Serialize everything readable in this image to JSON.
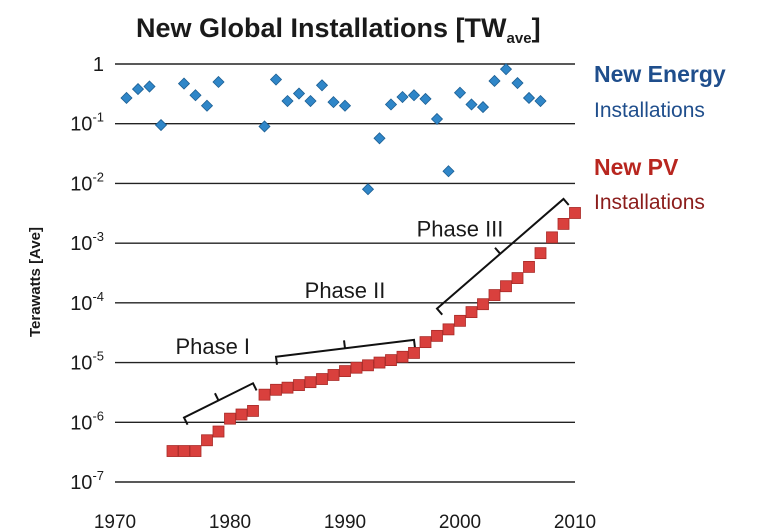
{
  "chart_data": {
    "type": "scatter",
    "title": "New Global Installations [TW",
    "title_subscript": "ave",
    "title_suffix": "]",
    "ylabel": "Terawatts [Ave]",
    "xlabel": "",
    "y_scale": "log",
    "ylim": [
      1e-07,
      1
    ],
    "xlim": [
      1970,
      2010
    ],
    "x_ticks": [
      "1970",
      "1980",
      "1990",
      "2000",
      "2010"
    ],
    "y_ticks": [
      {
        "value": 1,
        "base": "1",
        "exp": ""
      },
      {
        "value": 0.1,
        "base": "10",
        "exp": "-1"
      },
      {
        "value": 0.01,
        "base": "10",
        "exp": "-2"
      },
      {
        "value": 0.001,
        "base": "10",
        "exp": "-3"
      },
      {
        "value": 0.0001,
        "base": "10",
        "exp": "-4"
      },
      {
        "value": 1e-05,
        "base": "10",
        "exp": "-5"
      },
      {
        "value": 1e-06,
        "base": "10",
        "exp": "-6"
      },
      {
        "value": 1e-07,
        "base": "10",
        "exp": "-7"
      }
    ],
    "grid": "horizontal",
    "series": [
      {
        "name": "New Energy Installations",
        "legend_main": "New Energy",
        "legend_sub": "Installations",
        "marker": "diamond",
        "color": "#2f86c8",
        "text_color": "#1f4e8c",
        "points": [
          [
            1971,
            0.27
          ],
          [
            1972,
            0.38
          ],
          [
            1973,
            0.42
          ],
          [
            1974,
            0.095
          ],
          [
            1976,
            0.47
          ],
          [
            1977,
            0.3
          ],
          [
            1978,
            0.2
          ],
          [
            1979,
            0.5
          ],
          [
            1983,
            0.09
          ],
          [
            1984,
            0.55
          ],
          [
            1985,
            0.24
          ],
          [
            1986,
            0.32
          ],
          [
            1987,
            0.24
          ],
          [
            1988,
            0.44
          ],
          [
            1989,
            0.23
          ],
          [
            1990,
            0.2
          ],
          [
            1992,
            0.008
          ],
          [
            1993,
            0.057
          ],
          [
            1994,
            0.21
          ],
          [
            1995,
            0.28
          ],
          [
            1996,
            0.3
          ],
          [
            1997,
            0.26
          ],
          [
            1998,
            0.12
          ],
          [
            1999,
            0.016
          ],
          [
            2000,
            0.33
          ],
          [
            2001,
            0.21
          ],
          [
            2002,
            0.19
          ],
          [
            2003,
            0.52
          ],
          [
            2004,
            0.82
          ],
          [
            2005,
            0.48
          ],
          [
            2006,
            0.27
          ],
          [
            2007,
            0.24
          ]
        ]
      },
      {
        "name": "New PV Installations",
        "legend_main": "New PV",
        "legend_sub": "Installations",
        "marker": "square",
        "color": "#d9403d",
        "text_color": "#8b1d1b",
        "points": [
          [
            1975,
            3.3e-07
          ],
          [
            1976,
            3.3e-07
          ],
          [
            1977,
            3.3e-07
          ],
          [
            1978,
            5e-07
          ],
          [
            1979,
            7e-07
          ],
          [
            1980,
            1.15e-06
          ],
          [
            1981,
            1.35e-06
          ],
          [
            1982,
            1.55e-06
          ],
          [
            1983,
            2.9e-06
          ],
          [
            1984,
            3.5e-06
          ],
          [
            1985,
            3.8e-06
          ],
          [
            1986,
            4.2e-06
          ],
          [
            1987,
            4.7e-06
          ],
          [
            1988,
            5.3e-06
          ],
          [
            1989,
            6.2e-06
          ],
          [
            1990,
            7.2e-06
          ],
          [
            1991,
            8.2e-06
          ],
          [
            1992,
            9e-06
          ],
          [
            1993,
            1e-05
          ],
          [
            1994,
            1.1e-05
          ],
          [
            1995,
            1.25e-05
          ],
          [
            1996,
            1.45e-05
          ],
          [
            1997,
            2.2e-05
          ],
          [
            1998,
            2.8e-05
          ],
          [
            1999,
            3.6e-05
          ],
          [
            2000,
            5e-05
          ],
          [
            2001,
            7e-05
          ],
          [
            2002,
            9.5e-05
          ],
          [
            2003,
            0.000135
          ],
          [
            2004,
            0.00019
          ],
          [
            2005,
            0.00026
          ],
          [
            2006,
            0.0004
          ],
          [
            2007,
            0.00068
          ],
          [
            2008,
            0.00125
          ],
          [
            2009,
            0.0021
          ],
          [
            2010,
            0.0032
          ]
        ]
      }
    ],
    "annotations": [
      {
        "label": "Phase I",
        "from": [
          1976,
          1.2e-06
        ],
        "to": [
          1982,
          4.5e-06
        ],
        "text_at": [
          1978.5,
          1.4e-05
        ]
      },
      {
        "label": "Phase II",
        "from": [
          1984,
          1.25e-05
        ],
        "to": [
          1996,
          2.4e-05
        ],
        "text_at": [
          1990,
          0.00012
        ]
      },
      {
        "label": "Phase III",
        "from": [
          1998,
          8e-05
        ],
        "to": [
          2009,
          0.0055
        ],
        "text_at": [
          2000,
          0.0013
        ]
      }
    ]
  }
}
